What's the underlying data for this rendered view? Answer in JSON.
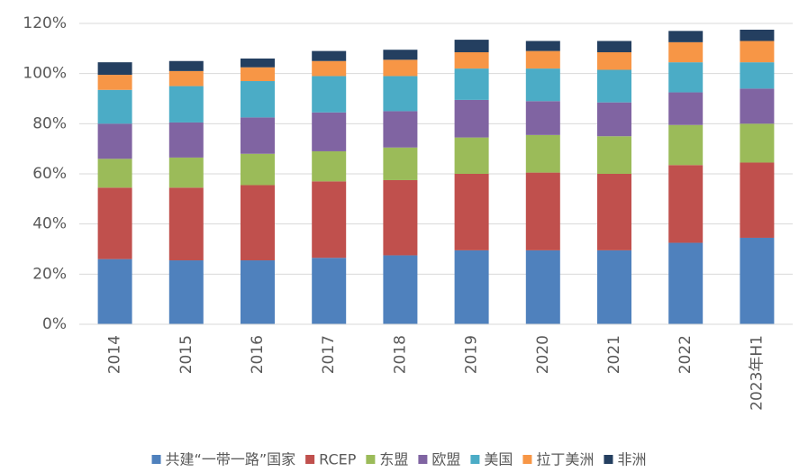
{
  "chart_data": {
    "type": "stacked_bar",
    "categories": [
      "2014",
      "2015",
      "2016",
      "2017",
      "2018",
      "2019",
      "2020",
      "2021",
      "2022",
      "2023年H1"
    ],
    "series": [
      {
        "name": "共建“一带一路”国家",
        "color": "#4f81bd",
        "values": [
          26,
          25.5,
          25.5,
          26.5,
          27.5,
          29.5,
          29.5,
          29.5,
          32.5,
          34.5
        ]
      },
      {
        "name": "RCEP",
        "color": "#c0504d",
        "values": [
          28.5,
          29,
          30,
          30.5,
          30,
          30.5,
          31,
          30.5,
          31,
          30
        ]
      },
      {
        "name": "东盟",
        "color": "#9bbb59",
        "values": [
          11.5,
          12,
          12.5,
          12,
          13,
          14.5,
          15,
          15,
          16,
          15.5
        ]
      },
      {
        "name": "欧盟",
        "color": "#8064a2",
        "values": [
          14,
          14,
          14.5,
          15.5,
          14.5,
          15,
          13.5,
          13.5,
          13,
          14
        ]
      },
      {
        "name": "美国",
        "color": "#4bacc6",
        "values": [
          13.5,
          14.5,
          14.5,
          14.5,
          14,
          12.5,
          13,
          13,
          12,
          10.5
        ]
      },
      {
        "name": "拉丁美洲",
        "color": "#f79646",
        "values": [
          6,
          6,
          5.5,
          6,
          6.5,
          6.5,
          7,
          7,
          8,
          8.5
        ]
      },
      {
        "name": "非洲",
        "color": "#243f60",
        "values": [
          5,
          4,
          3.5,
          4,
          4,
          5,
          4,
          4.5,
          4.5,
          4.5
        ]
      }
    ],
    "ylim": [
      0,
      120
    ],
    "yticks": [
      {
        "value": 0,
        "label": "0%"
      },
      {
        "value": 20,
        "label": "20%"
      },
      {
        "value": 40,
        "label": "40%"
      },
      {
        "value": 60,
        "label": "60%"
      },
      {
        "value": 80,
        "label": "80%"
      },
      {
        "value": 100,
        "label": "100%"
      },
      {
        "value": 120,
        "label": "120%"
      }
    ],
    "grid": true,
    "legend": "bottom"
  }
}
